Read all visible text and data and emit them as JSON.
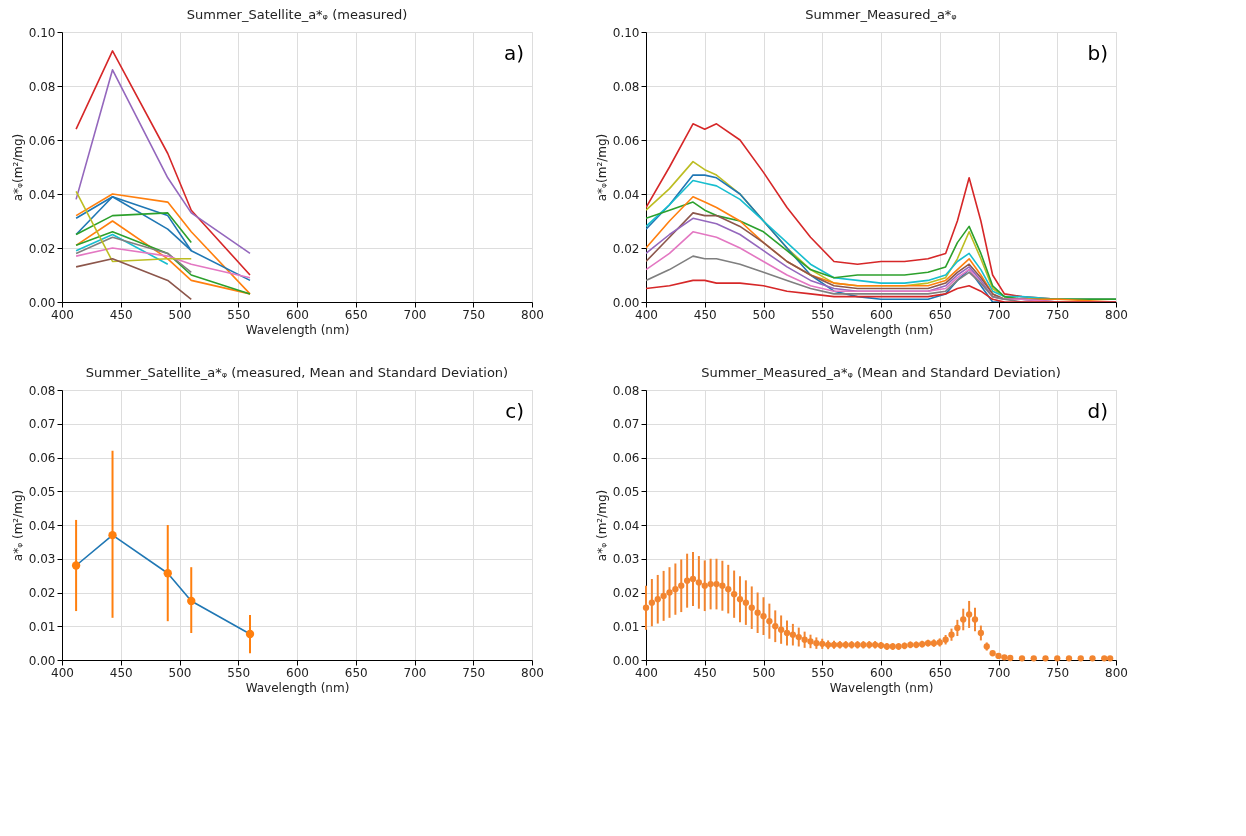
{
  "chart_data": [
    {
      "type": "line",
      "title": "Summer_Satellite_a*ᵩ (measured)",
      "xlabel": "Wavelength (nm)",
      "ylabel": "a*ᵩ(m²/mg)",
      "annotations": [
        "a)"
      ],
      "grid": true,
      "line_style": "solid",
      "xlim": [
        400,
        800
      ],
      "xticks": [
        400,
        450,
        500,
        550,
        600,
        650,
        700,
        750,
        800
      ],
      "ylim": [
        0,
        0.1
      ],
      "yticks": [
        {
          "value": 0,
          "label": "0.00"
        },
        {
          "value": 0.02,
          "label": "0.02"
        },
        {
          "value": 0.04,
          "label": "0.04"
        },
        {
          "value": 0.06,
          "label": "0.06"
        },
        {
          "value": 0.08,
          "label": "0.08"
        },
        {
          "value": 0.1,
          "label": "0.10"
        }
      ],
      "x": [
        412,
        443,
        490,
        510,
        560
      ],
      "series": [
        {
          "color": "#d62728",
          "values": [
            0.064,
            0.093,
            0.055,
            0.034,
            0.01
          ]
        },
        {
          "color": "#9467bd",
          "values": [
            0.038,
            0.086,
            0.046,
            0.033,
            0.018
          ]
        },
        {
          "color": "#ff7f0e",
          "values": [
            0.032,
            0.04,
            0.037,
            0.026,
            0.003
          ]
        },
        {
          "color": "#1f77b4",
          "values": [
            0.031,
            0.039,
            0.032,
            0.019,
            0.008
          ]
        },
        {
          "color": "#1f77b4",
          "values": [
            0.025,
            0.039,
            0.027,
            0.019,
            null
          ]
        },
        {
          "color": "#2ca02c",
          "values": [
            0.025,
            0.032,
            0.033,
            0.022,
            null
          ]
        },
        {
          "color": "#ff7f0e",
          "values": [
            0.021,
            0.03,
            0.016,
            0.008,
            0.003
          ]
        },
        {
          "color": "#2ca02c",
          "values": [
            0.021,
            0.026,
            0.018,
            0.01,
            0.003
          ]
        },
        {
          "color": "#17becf",
          "values": [
            0.019,
            0.025,
            0.014,
            null,
            null
          ]
        },
        {
          "color": "#7f7f7f",
          "values": [
            0.018,
            0.024,
            0.018,
            0.011,
            null
          ]
        },
        {
          "color": "#e377c2",
          "values": [
            0.017,
            0.02,
            0.017,
            0.014,
            0.009
          ]
        },
        {
          "color": "#bcbd22",
          "values": [
            0.041,
            0.015,
            0.016,
            0.016,
            null
          ]
        },
        {
          "color": "#8c564b",
          "values": [
            0.013,
            0.016,
            0.008,
            0.001,
            null
          ]
        }
      ]
    },
    {
      "type": "line",
      "title": "Summer_Measured_a*ᵩ",
      "xlabel": "Wavelength (nm)",
      "ylabel": "a*ᵩ(m²/mg)",
      "annotations": [
        "b)"
      ],
      "grid": true,
      "line_style": "solid",
      "xlim": [
        400,
        800
      ],
      "xticks": [
        400,
        450,
        500,
        550,
        600,
        650,
        700,
        750,
        800
      ],
      "ylim": [
        0,
        0.1
      ],
      "yticks": [
        {
          "value": 0,
          "label": "0.00"
        },
        {
          "value": 0.02,
          "label": "0.02"
        },
        {
          "value": 0.04,
          "label": "0.04"
        },
        {
          "value": 0.06,
          "label": "0.06"
        },
        {
          "value": 0.08,
          "label": "0.08"
        },
        {
          "value": 0.1,
          "label": "0.10"
        }
      ],
      "x": [
        400,
        420,
        440,
        450,
        460,
        480,
        500,
        520,
        540,
        560,
        580,
        600,
        620,
        640,
        655,
        665,
        675,
        685,
        695,
        705,
        720,
        750,
        800
      ],
      "series": [
        {
          "color": "#d62728",
          "values": [
            0.035,
            0.05,
            0.066,
            0.064,
            0.066,
            0.06,
            0.048,
            0.035,
            0.024,
            0.015,
            0.014,
            0.015,
            0.015,
            0.016,
            0.018,
            0.03,
            0.046,
            0.03,
            0.01,
            0.003,
            0.002,
            0.001,
            0.001
          ]
        },
        {
          "color": "#bcbd22",
          "values": [
            0.034,
            0.042,
            0.052,
            0.049,
            0.047,
            0.04,
            0.03,
            0.02,
            0.012,
            0.007,
            0.006,
            0.006,
            0.006,
            0.007,
            0.009,
            0.016,
            0.026,
            0.016,
            0.005,
            0.002,
            0.001,
            0.001,
            0.001
          ]
        },
        {
          "color": "#1f77b4",
          "values": [
            0.027,
            0.036,
            0.047,
            0.047,
            0.046,
            0.04,
            0.03,
            0.02,
            0.01,
            0.004,
            0.002,
            0.001,
            0.001,
            0.001,
            0.003,
            0.008,
            0.012,
            0.006,
            0.0,
            0.0,
            null,
            null,
            null
          ]
        },
        {
          "color": "#17becf",
          "values": [
            0.028,
            0.036,
            0.045,
            0.044,
            0.043,
            0.038,
            0.03,
            0.022,
            0.014,
            0.009,
            0.008,
            0.007,
            0.007,
            0.008,
            0.01,
            0.015,
            0.018,
            0.012,
            0.004,
            0.002,
            0.002,
            0.001,
            0.001
          ]
        },
        {
          "color": "#2ca02c",
          "values": [
            0.031,
            0.034,
            0.037,
            0.034,
            0.032,
            0.03,
            0.026,
            0.019,
            0.012,
            0.009,
            0.01,
            0.01,
            0.01,
            0.011,
            0.013,
            0.022,
            0.028,
            0.018,
            0.006,
            0.002,
            0.001,
            0.001,
            0.001
          ]
        },
        {
          "color": "#ff7f0e",
          "values": [
            0.02,
            0.03,
            0.039,
            0.037,
            0.035,
            0.03,
            0.022,
            0.015,
            0.01,
            0.007,
            0.006,
            0.006,
            0.006,
            0.006,
            0.008,
            0.012,
            0.016,
            0.01,
            0.003,
            0.001,
            0.001,
            0.001,
            0.0
          ]
        },
        {
          "color": "#8c564b",
          "values": [
            0.015,
            0.024,
            0.033,
            0.032,
            0.032,
            0.028,
            0.022,
            0.015,
            0.01,
            0.006,
            0.005,
            0.005,
            0.005,
            0.005,
            0.007,
            0.011,
            0.014,
            0.009,
            0.003,
            0.001,
            0.001,
            0.0,
            0.0
          ]
        },
        {
          "color": "#9467bd",
          "values": [
            0.018,
            0.025,
            0.031,
            0.03,
            0.029,
            0.025,
            0.019,
            0.013,
            0.008,
            0.005,
            0.004,
            0.004,
            0.004,
            0.004,
            0.006,
            0.01,
            0.013,
            0.008,
            0.002,
            0.001,
            0.001,
            0.0,
            0.0
          ]
        },
        {
          "color": "#e377c2",
          "values": [
            0.012,
            0.018,
            0.026,
            0.025,
            0.024,
            0.02,
            0.015,
            0.01,
            0.006,
            0.004,
            0.004,
            0.004,
            0.004,
            0.004,
            0.005,
            0.009,
            0.012,
            0.007,
            0.002,
            0.001,
            0.001,
            0.0,
            0.0
          ]
        },
        {
          "color": "#7f7f7f",
          "values": [
            0.008,
            0.012,
            0.017,
            0.016,
            0.016,
            0.014,
            0.011,
            0.008,
            0.005,
            0.003,
            0.003,
            0.003,
            0.003,
            0.003,
            0.004,
            0.008,
            0.011,
            0.007,
            0.002,
            0.001,
            0.0,
            0.0,
            0.0
          ]
        },
        {
          "color": "#d62728",
          "values": [
            0.005,
            0.006,
            0.008,
            0.008,
            0.007,
            0.007,
            0.006,
            0.004,
            0.003,
            0.002,
            0.002,
            0.002,
            0.002,
            0.002,
            0.003,
            0.005,
            0.006,
            0.004,
            0.001,
            0.0,
            0.0,
            0.0,
            0.0
          ]
        }
      ]
    },
    {
      "type": "line",
      "title": "Summer_Satellite_a*ᵩ (measured, Mean and Standard Deviation)",
      "xlabel": "Wavelength (nm)",
      "ylabel": "a*ᵩ (m²/mg)",
      "annotations": [
        "c)"
      ],
      "grid": true,
      "line_style": "solid",
      "xlim": [
        400,
        800
      ],
      "xticks": [
        400,
        450,
        500,
        550,
        600,
        650,
        700,
        750,
        800
      ],
      "ylim": [
        0,
        0.08
      ],
      "yticks": [
        {
          "value": 0,
          "label": "0.00"
        },
        {
          "value": 0.01,
          "label": "0.01"
        },
        {
          "value": 0.02,
          "label": "0.02"
        },
        {
          "value": 0.03,
          "label": "0.03"
        },
        {
          "value": 0.04,
          "label": "0.04"
        },
        {
          "value": 0.05,
          "label": "0.05"
        },
        {
          "value": 0.06,
          "label": "0.06"
        },
        {
          "value": 0.07,
          "label": "0.07"
        },
        {
          "value": 0.08,
          "label": "0.08"
        }
      ],
      "x": [
        412,
        443,
        490,
        510,
        560
      ],
      "series": [
        {
          "type": "line",
          "color": "#1f77b4",
          "values": [
            0.028,
            0.037,
            0.0257,
            0.0175,
            0.0077
          ]
        },
        {
          "type": "scatter",
          "marker": "circle",
          "color": "#ff7f0e",
          "values": [
            0.028,
            0.037,
            0.0257,
            0.0175,
            0.0077
          ],
          "errors": [
            [
              0.0145,
              0.0415
            ],
            [
              0.0125,
              0.062
            ],
            [
              0.0115,
              0.04
            ],
            [
              0.008,
              0.0275
            ],
            [
              0.002,
              0.0133
            ]
          ]
        }
      ]
    },
    {
      "type": "line",
      "title": "Summer_Measured_a*ᵩ (Mean and Standard Deviation)",
      "xlabel": "Wavelength (nm)",
      "ylabel": "a*ᵩ (m²/mg)",
      "annotations": [
        "d)"
      ],
      "grid": true,
      "line_style": "solid",
      "xlim": [
        400,
        800
      ],
      "xticks": [
        400,
        450,
        500,
        550,
        600,
        650,
        700,
        750,
        800
      ],
      "ylim": [
        0,
        0.08
      ],
      "yticks": [
        {
          "value": 0,
          "label": "0.00"
        },
        {
          "value": 0.01,
          "label": "0.01"
        },
        {
          "value": 0.02,
          "label": "0.02"
        },
        {
          "value": 0.03,
          "label": "0.03"
        },
        {
          "value": 0.04,
          "label": "0.04"
        },
        {
          "value": 0.05,
          "label": "0.05"
        },
        {
          "value": 0.06,
          "label": "0.06"
        },
        {
          "value": 0.07,
          "label": "0.07"
        },
        {
          "value": 0.08,
          "label": "0.08"
        }
      ],
      "x": [
        400,
        405,
        410,
        415,
        420,
        425,
        430,
        435,
        440,
        445,
        450,
        455,
        460,
        465,
        470,
        475,
        480,
        485,
        490,
        495,
        500,
        505,
        510,
        515,
        520,
        525,
        530,
        535,
        540,
        545,
        550,
        555,
        560,
        565,
        570,
        575,
        580,
        585,
        590,
        595,
        600,
        605,
        610,
        615,
        620,
        625,
        630,
        635,
        640,
        645,
        650,
        655,
        660,
        665,
        670,
        675,
        680,
        685,
        690,
        695,
        700,
        705,
        710,
        720,
        730,
        740,
        750,
        760,
        770,
        780,
        790,
        795
      ],
      "series": [
        {
          "type": "scatter",
          "marker": "circle",
          "color": "#f28530",
          "values": [
            0.0155,
            0.017,
            0.018,
            0.019,
            0.02,
            0.021,
            0.022,
            0.0235,
            0.024,
            0.023,
            0.022,
            0.0225,
            0.0225,
            0.022,
            0.021,
            0.0195,
            0.018,
            0.017,
            0.0155,
            0.014,
            0.013,
            0.0115,
            0.01,
            0.009,
            0.008,
            0.0075,
            0.0068,
            0.006,
            0.0055,
            0.005,
            0.0048,
            0.0045,
            0.0045,
            0.0045,
            0.0045,
            0.0045,
            0.0045,
            0.0045,
            0.0045,
            0.0045,
            0.0043,
            0.004,
            0.004,
            0.004,
            0.0042,
            0.0045,
            0.0045,
            0.0047,
            0.005,
            0.005,
            0.0052,
            0.006,
            0.0075,
            0.0095,
            0.012,
            0.0135,
            0.012,
            0.008,
            0.004,
            0.002,
            0.0012,
            0.0008,
            0.0006,
            0.0005,
            0.0005,
            0.0005,
            0.0005,
            0.0005,
            0.0005,
            0.0005,
            0.0005,
            0.0005
          ],
          "errors": [
            0.0065,
            0.007,
            0.0072,
            0.0074,
            0.0075,
            0.0076,
            0.0078,
            0.008,
            0.008,
            0.0078,
            0.0075,
            0.0075,
            0.0075,
            0.0074,
            0.0072,
            0.007,
            0.0068,
            0.0066,
            0.0063,
            0.006,
            0.0056,
            0.0052,
            0.0047,
            0.0042,
            0.0037,
            0.0032,
            0.0028,
            0.0024,
            0.002,
            0.0017,
            0.0015,
            0.0013,
            0.0012,
            0.0011,
            0.0011,
            0.0011,
            0.0011,
            0.0011,
            0.0011,
            0.0011,
            0.001,
            0.001,
            0.001,
            0.001,
            0.001,
            0.001,
            0.001,
            0.001,
            0.001,
            0.0011,
            0.0012,
            0.0014,
            0.0018,
            0.0024,
            0.0032,
            0.004,
            0.0035,
            0.0022,
            0.0012,
            0.0008,
            0.0005,
            0.0004,
            0.0003,
            0.0003,
            0.0003,
            0.0003,
            0.0003,
            0.0003,
            0.0003,
            0.0003,
            0.0003,
            0.0003
          ]
        }
      ]
    }
  ]
}
